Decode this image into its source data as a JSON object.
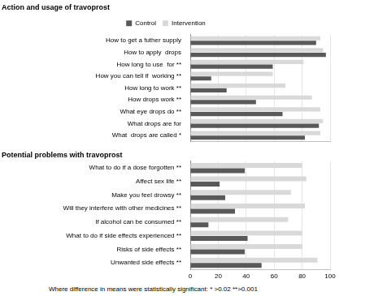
{
  "chart_data": [
    {
      "type": "bar",
      "orientation": "horizontal",
      "title": "Action and usage of travoprost",
      "categories": [
        "How to get a futher supply",
        "How to apply  drops",
        "How long to use  for **",
        "How you can tell if  working **",
        "How long to work **",
        "How drops work **",
        "What eye drops do **",
        "What drops are for",
        "What  drops are called *"
      ],
      "series": [
        {
          "name": "Control",
          "color": "#595959",
          "values": [
            90,
            97,
            59,
            15,
            26,
            47,
            66,
            92,
            82
          ]
        },
        {
          "name": "Intervention",
          "color": "#d9d9d9",
          "values": [
            93,
            95,
            81,
            59,
            68,
            87,
            93,
            95,
            93
          ]
        }
      ],
      "xlim": [
        0,
        100
      ],
      "xticks": [
        0,
        20,
        40,
        60,
        80,
        100
      ],
      "grid": true,
      "legend": "top",
      "tick_labels": "y"
    },
    {
      "type": "bar",
      "orientation": "horizontal",
      "title": "Potential problems with travoprost",
      "categories": [
        "What to do if a dose forgotten **",
        "Affect sex life **",
        "Make you feel drowsy **",
        "Will they interfere with other medicines **",
        "If alcohol can be consumed **",
        "What to do if side effects experienced **",
        "Risks of side effects **",
        "Unwanted side effects **"
      ],
      "series": [
        {
          "name": "Control",
          "color": "#595959",
          "values": [
            39,
            21,
            25,
            32,
            13,
            41,
            39,
            51
          ]
        },
        {
          "name": "Intervention",
          "color": "#d9d9d9",
          "values": [
            80,
            83,
            72,
            82,
            70,
            80,
            80,
            91
          ]
        }
      ],
      "xlim": [
        0,
        100
      ],
      "xticks": [
        0,
        20,
        40,
        60,
        80,
        100
      ],
      "grid": true,
      "annotation": "Where difference in means were statistically significant: * >0.02 **>0.001"
    }
  ]
}
